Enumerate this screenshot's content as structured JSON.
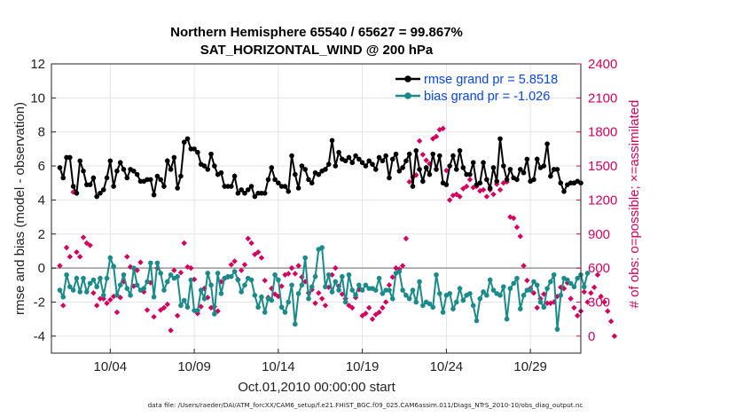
{
  "chart_data": {
    "type": "line",
    "title": [
      "Northern Hemisphere 65540 / 65627 = 99.867%",
      "SAT_HORIZONTAL_WIND @ 200 hPa"
    ],
    "xlabel": "Oct.01,2010 00:00:00 start",
    "ylabel_left": "rmse and bias (model - observation)",
    "ylabel_right": "# of obs: o=possible; ×=assimilated",
    "footer": "data file: /Users/raeder/DAI/ATM_forcXX/CAM6_setup/f.e21.FHIST_BGC.f09_025.CAM6assim.011/Diags_NTrS_2010-10/obs_diag_output.nc",
    "x_range_days": [
      0.5,
      32
    ],
    "x_ticks": [
      {
        "day": 4,
        "label": "10/04"
      },
      {
        "day": 9,
        "label": "10/09"
      },
      {
        "day": 14,
        "label": "10/14"
      },
      {
        "day": 19,
        "label": "10/19"
      },
      {
        "day": 24,
        "label": "10/24"
      },
      {
        "day": 29,
        "label": "10/29"
      }
    ],
    "ylim_left": [
      -5,
      12
    ],
    "yticks_left": [
      -4,
      -2,
      0,
      2,
      4,
      6,
      8,
      10,
      12
    ],
    "ylim_right": [
      -150,
      2400
    ],
    "yticks_right": [
      0,
      300,
      600,
      900,
      1200,
      1500,
      1800,
      2100,
      2400
    ],
    "grid": true,
    "zero_line": 0,
    "legend_placement": "top-right",
    "series": [
      {
        "name": "rmse grand pr = 5.8518",
        "axis": "left",
        "color": "#000000",
        "marker": "dot",
        "values": [
          5.9,
          5.3,
          6.5,
          6.5,
          4.8,
          4.4,
          6.3,
          5.7,
          4.9,
          4.9,
          5.3,
          4.2,
          4.4,
          4.6,
          5.3,
          6.3,
          4.8,
          5.7,
          6.2,
          5.8,
          5.3,
          5.8,
          5.7,
          5.5,
          5.1,
          5.1,
          5.2,
          5.2,
          4.3,
          5.4,
          5.2,
          4.8,
          6.3,
          5.8,
          6.5,
          4.7,
          5.4,
          7.4,
          7.6,
          7.0,
          7.0,
          6.8,
          6.1,
          6.0,
          5.8,
          6.7,
          6.0,
          5.5,
          5.6,
          4.8,
          4.8,
          4.8,
          5.4,
          4.4,
          4.6,
          4.4,
          4.6,
          4.8,
          4.2,
          4.4,
          4.4,
          4.4,
          5.2,
          5.9,
          5.2,
          5.0,
          4.8,
          4.8,
          4.5,
          6.6,
          5.5,
          4.7,
          6.0,
          5.8,
          5.2,
          5.0,
          5.6,
          5.5,
          5.7,
          5.8,
          6.1,
          7.5,
          6.0,
          6.8,
          6.4,
          6.3,
          6.5,
          6.2,
          6.6,
          6.4,
          6.2,
          6.0,
          6.3,
          6.1,
          5.8,
          6.5,
          6.3,
          6.6,
          5.3,
          6.4,
          6.7,
          5.7,
          5.9,
          6.3,
          6.7,
          4.8,
          6.9,
          5.8,
          5.1,
          5.9,
          5.5,
          6.7,
          5.8,
          6.6,
          5.0,
          4.9,
          6.0,
          6.6,
          5.8,
          6.9,
          5.9,
          5.5,
          5.5,
          6.2,
          4.9,
          5.0,
          6.2,
          5.2,
          4.7,
          5.9,
          5.1,
          7.6,
          6.0,
          5.2,
          5.8,
          5.3,
          5.2,
          5.8,
          5.6,
          6.4,
          5.1,
          5.2,
          6.4,
          5.9,
          6.0,
          7.3,
          5.4,
          5.8,
          5.8,
          5.0,
          4.5,
          4.9,
          5.0,
          5.0,
          5.1,
          5.0
        ]
      },
      {
        "name": "bias grand pr = -1.026",
        "axis": "left",
        "color": "#1a8a8a",
        "marker": "dot",
        "values": [
          -1.3,
          -1.7,
          -0.4,
          -1.1,
          -1.3,
          -0.6,
          -1.4,
          -0.6,
          -1.4,
          -0.9,
          -0.7,
          -1.1,
          -0.6,
          -1.6,
          -0.6,
          0.6,
          0.1,
          -1.6,
          -1.0,
          -0.4,
          -1.2,
          -1.6,
          0.0,
          -1.0,
          -1.3,
          -1.2,
          -0.8,
          0.3,
          -1.7,
          0.3,
          -0.3,
          -1.3,
          -0.8,
          -0.4,
          -0.6,
          -0.5,
          -2.2,
          -1.9,
          -2.3,
          -0.7,
          -2.5,
          -2.5,
          -1.3,
          -1.8,
          -0.3,
          -1.0,
          -2.7,
          -0.3,
          -1.5,
          -0.6,
          -0.5,
          -0.5,
          -0.2,
          -0.7,
          -1.4,
          -1.0,
          -0.6,
          -0.7,
          -1.6,
          -2.3,
          -1.7,
          -2.6,
          -1.8,
          -1.9,
          -0.4,
          -0.7,
          -2.3,
          -2.6,
          -2.0,
          -1.0,
          -3.3,
          -1.5,
          -1.0,
          0.6,
          -1.8,
          -1.1,
          -0.5,
          1.1,
          1.2,
          -1.1,
          -0.4,
          -1.4,
          -0.8,
          -1.3,
          -0.5,
          -2.0,
          -0.4,
          -1.3,
          -1.6,
          -1.0,
          -1.3,
          -1.0,
          -1.2,
          -1.2,
          -1.3,
          -0.6,
          -1.5,
          -1.3,
          -1.3,
          -1.8,
          -0.3,
          -0.2,
          -1.3,
          -1.6,
          -1.8,
          -1.3,
          -2.0,
          -0.8,
          -2.2,
          -2.0,
          -2.1,
          -2.3,
          -0.4,
          -1.5,
          -2.6,
          -1.6,
          -1.5,
          -2.4,
          -2.0,
          -1.2,
          -1.9,
          -1.6,
          -1.5,
          -2.2,
          -3.1,
          -1.8,
          -1.4,
          -1.6,
          -0.7,
          -1.3,
          -1.5,
          -1.6,
          -1.1,
          -3.0,
          -1.2,
          -0.9,
          -0.6,
          -2.4,
          -1.6,
          -1.3,
          -1.3,
          -0.8,
          -1.0,
          -2.0,
          -2.3,
          -1.2,
          -0.8,
          -0.4,
          -3.6,
          -1.6,
          -0.6,
          -0.7,
          -0.9,
          -1.1,
          -0.6,
          -0.4,
          -1.1,
          -0.3
        ]
      },
      {
        "name": "# assimilated",
        "axis": "right",
        "color": "#d6005c",
        "marker": "x",
        "values": [
          620,
          270,
          780,
          700,
          1270,
          740,
          700,
          870,
          820,
          800,
          380,
          270,
          330,
          330,
          290,
          320,
          350,
          210,
          340,
          480,
          700,
          610,
          440,
          580,
          650,
          390,
          230,
          470,
          170,
          600,
          230,
          250,
          280,
          50,
          580,
          180,
          560,
          820,
          610,
          600,
          500,
          200,
          260,
          420,
          340,
          250,
          260,
          220,
          480,
          510,
          520,
          630,
          660,
          500,
          580,
          630,
          860,
          820,
          720,
          740,
          690,
          490,
          340,
          420,
          370,
          350,
          440,
          540,
          550,
          600,
          550,
          620,
          520,
          480,
          380,
          410,
          290,
          380,
          330,
          270,
          430,
          540,
          600,
          440,
          370,
          330,
          270,
          250,
          340,
          410,
          180,
          200,
          250,
          150,
          190,
          210,
          250,
          300,
          450,
          520,
          600,
          590,
          620,
          860,
          1360,
          1400,
          1420,
          1720,
          1600,
          1550,
          1520,
          1740,
          1760,
          1820,
          1830,
          1460,
          1200,
          1240,
          1250,
          1230,
          1300,
          1320,
          1380,
          1310,
          1320,
          1280,
          1290,
          1230,
          1290,
          1250,
          1340,
          1290,
          1350,
          1360,
          1050,
          1040,
          960,
          880,
          620,
          490,
          420,
          380,
          250,
          330,
          370,
          290,
          290,
          300,
          350,
          430,
          420,
          470,
          330,
          250,
          180,
          220,
          390,
          300,
          380,
          430,
          540,
          350,
          300,
          220,
          130,
          0
        ]
      }
    ]
  }
}
